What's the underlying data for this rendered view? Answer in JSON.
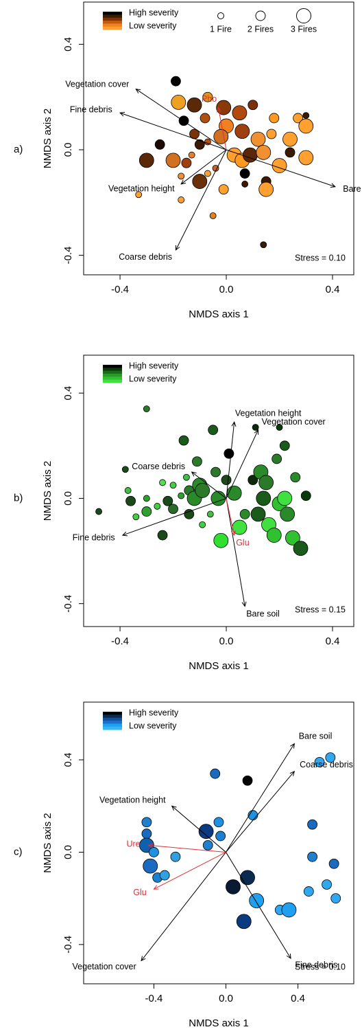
{
  "chart_data": [
    {
      "type": "scatter",
      "panel": "a)",
      "xlabel": "NMDS axis 1",
      "ylabel": "NMDS axis 2",
      "xlim": [
        -0.537,
        0.48
      ],
      "ylim": [
        -0.474,
        0.56
      ],
      "xticks": [
        -0.4,
        {
          "value": 0,
          "label": "0.0"
        },
        0.4
      ],
      "yticks": [
        -0.4,
        {
          "value": 0,
          "label": "0.0"
        },
        0.4
      ],
      "legend": {
        "high": "High severity",
        "low": "Low severity",
        "colors": [
          "#000000",
          "#3a1a00",
          "#7a3208",
          "#c05a10",
          "#f08020",
          "#ffa030"
        ]
      },
      "size_legend": [
        {
          "value": 1,
          "label": "1 Fire"
        },
        {
          "value": 2,
          "label": "2 Fires"
        },
        {
          "value": 3,
          "label": "3 Fires"
        }
      ],
      "stress": "Stress = 0.10",
      "x": [
        -0.19,
        -0.18,
        -0.12,
        -0.07,
        -0.01,
        0.05,
        0.1,
        0.18,
        0.27,
        0.3,
        -0.16,
        -0.08,
        0.0,
        -0.02,
        0.06,
        0.12,
        0.17,
        0.24,
        -0.25,
        -0.12,
        -0.1,
        -0.07,
        -0.3,
        -0.2,
        -0.15,
        -0.13,
        0.03,
        0.06,
        0.09,
        0.14,
        0.24,
        0.2,
        0.3,
        -0.1,
        -0.04,
        -0.01,
        0.07,
        0.07,
        0.15,
        0.15,
        -0.17,
        -0.07,
        -0.33,
        -0.17,
        -0.05,
        0.14,
        0.3
      ],
      "y": [
        0.26,
        0.18,
        0.17,
        0.2,
        0.16,
        0.14,
        0.17,
        0.12,
        0.12,
        0.09,
        0.11,
        0.12,
        0.09,
        0.05,
        0.07,
        0.04,
        0.06,
        0.04,
        0.02,
        0.06,
        0.02,
        0.03,
        -0.04,
        -0.04,
        -0.05,
        -0.02,
        -0.02,
        -0.04,
        -0.02,
        -0.01,
        -0.01,
        -0.06,
        -0.03,
        -0.12,
        -0.07,
        -0.15,
        -0.09,
        -0.13,
        -0.12,
        -0.15,
        -0.1,
        -0.09,
        -0.17,
        -0.19,
        -0.25,
        -0.36,
        0.13
      ],
      "fires": [
        2,
        3,
        3,
        2,
        3,
        3,
        2,
        2,
        2,
        3,
        2,
        2,
        3,
        3,
        3,
        3,
        2,
        3,
        2,
        2,
        2,
        1,
        3,
        3,
        2,
        1,
        3,
        3,
        3,
        3,
        2,
        3,
        3,
        3,
        1,
        2,
        2,
        1,
        2,
        3,
        1,
        1,
        1,
        1,
        1,
        1,
        1
      ],
      "colors": [
        "#000000",
        "#f0a020",
        "#5a2a08",
        "#e89020",
        "#8a3a08",
        "#b04a10",
        "#7a3208",
        "#ff9a20",
        "#ffa030",
        "#ffa030",
        "#000000",
        "#b05010",
        "#f08020",
        "#d07020",
        "#a04010",
        "#f09030",
        "#ffa030",
        "#ffa030",
        "#1a0a00",
        "#7a3208",
        "#3a1a00",
        "#c05010",
        "#5a2808",
        "#d07020",
        "#a04010",
        "#e08030",
        "#ffa030",
        "#ff9a20",
        "#5a2808",
        "#f09030",
        "#3a1a00",
        "#ffa030",
        "#ffa030",
        "#6a3008",
        "#d06020",
        "#ffa030",
        "#000000",
        "#3a1a00",
        "#3a1a00",
        "#ffa030",
        "#f09030",
        "#ffa030",
        "#ffa030",
        "#ffa030",
        "#e08020",
        "#3a1a00",
        "#3a1a00"
      ],
      "vectors": [
        {
          "label": "Vegetation cover",
          "x": -0.34,
          "y": 0.23,
          "color": "#000000"
        },
        {
          "label": "Fine debris",
          "x": -0.4,
          "y": 0.14,
          "color": "#000000"
        },
        {
          "label": "Vegetation height",
          "x": -0.17,
          "y": -0.13,
          "color": "#000000"
        },
        {
          "label": "Coarse debris",
          "x": -0.19,
          "y": -0.38,
          "color": "#000000"
        },
        {
          "label": "Bare soil",
          "x": 0.41,
          "y": -0.14,
          "color": "#000000"
        },
        {
          "label": "Pho",
          "x": -0.03,
          "y": 0.16,
          "color": "#e0303a"
        }
      ]
    },
    {
      "type": "scatter",
      "panel": "b)",
      "xlabel": "NMDS axis 1",
      "ylabel": "NMDS axis 2",
      "xlim": [
        -0.537,
        0.48
      ],
      "ylim": [
        -0.487,
        0.544
      ],
      "xticks": [
        -0.4,
        {
          "value": 0,
          "label": "0.0"
        },
        0.4
      ],
      "yticks": [
        -0.4,
        {
          "value": 0,
          "label": "0.0"
        },
        0.4
      ],
      "legend": {
        "high": "High severity",
        "low": "Low severity",
        "colors": [
          "#000000",
          "#0a3a0a",
          "#1a6a1a",
          "#2a9a2a",
          "#30c030",
          "#40e040"
        ]
      },
      "stress": "Stress = 0.15",
      "x": [
        -0.48,
        -0.3,
        -0.38,
        -0.37,
        -0.36,
        -0.34,
        -0.3,
        -0.3,
        -0.26,
        -0.24,
        -0.24,
        -0.22,
        -0.2,
        -0.2,
        -0.17,
        -0.16,
        -0.15,
        -0.14,
        -0.14,
        -0.12,
        -0.11,
        -0.1,
        -0.09,
        -0.09,
        -0.06,
        -0.05,
        -0.04,
        -0.03,
        -0.02,
        0.0,
        0.01,
        0.03,
        0.05,
        0.07,
        0.1,
        0.11,
        0.12,
        0.13,
        0.14,
        0.15,
        0.16,
        0.18,
        0.19,
        0.2,
        0.22,
        0.22,
        0.23,
        0.25,
        0.26,
        0.28,
        0.3,
        0.2
      ],
      "y": [
        -0.05,
        0.34,
        0.11,
        0.03,
        -0.01,
        -0.07,
        0.0,
        -0.05,
        -0.03,
        0.06,
        -0.14,
        -0.01,
        0.05,
        -0.04,
        0.01,
        0.22,
        0.08,
        0.03,
        -0.06,
        0.0,
        0.14,
        0.05,
        0.03,
        -0.1,
        -0.06,
        0.26,
        0.1,
        0.0,
        -0.16,
        0.07,
        0.17,
        0.02,
        -0.11,
        -0.06,
        0.07,
        0.27,
        -0.06,
        0.1,
        0.0,
        0.06,
        -0.1,
        -0.14,
        0.15,
        -0.02,
        0.0,
        0.2,
        -0.06,
        -0.15,
        0.08,
        -0.19,
        0.01,
        0.27
      ],
      "fires": [
        1,
        1,
        1,
        1,
        2,
        1,
        1,
        2,
        1,
        1,
        2,
        2,
        1,
        2,
        1,
        2,
        1,
        2,
        2,
        3,
        2,
        3,
        3,
        1,
        1,
        2,
        2,
        3,
        3,
        2,
        2,
        3,
        3,
        2,
        2,
        1,
        3,
        3,
        3,
        3,
        3,
        3,
        2,
        3,
        3,
        2,
        3,
        3,
        2,
        3,
        2,
        1
      ],
      "colors": [
        "#1a4a1a",
        "#2a7a2a",
        "#1a4a1a",
        "#40c040",
        "#1a4a1a",
        "#40d040",
        "#30a030",
        "#30a030",
        "#40d040",
        "#50e050",
        "#1a4a1a",
        "#1a4a1a",
        "#40d040",
        "#2a6a2a",
        "#30a030",
        "#1a5a1a",
        "#40c040",
        "#2a7a2a",
        "#1a4a1a",
        "#2a8a2a",
        "#2a7a2a",
        "#2a8a2a",
        "#2a7a2a",
        "#40d040",
        "#40c040",
        "#1a5a1a",
        "#2a7a2a",
        "#2a8a2a",
        "#30e030",
        "#1a4a1a",
        "#000000",
        "#2a8a2a",
        "#40e040",
        "#2a8a2a",
        "#0a2a0a",
        "#0a2a0a",
        "#1a5a1a",
        "#2a8a2a",
        "#1a5a1a",
        "#2a7a2a",
        "#40e040",
        "#30c030",
        "#2a7a2a",
        "#30c030",
        "#40e040",
        "#1a5a1a",
        "#2a8a2a",
        "#30c030",
        "#2a8a2a",
        "#1a5a1a",
        "#0a3a0a",
        "#0a3a0a"
      ],
      "vectors": [
        {
          "label": "Vegetation height",
          "x": 0.03,
          "y": 0.29,
          "color": "#000000"
        },
        {
          "label": "Vegetation cover",
          "x": 0.12,
          "y": 0.26,
          "color": "#000000"
        },
        {
          "label": "Coarse debris",
          "x": -0.13,
          "y": 0.1,
          "color": "#000000"
        },
        {
          "label": "Fine debris",
          "x": -0.39,
          "y": -0.14,
          "color": "#000000"
        },
        {
          "label": "Bare soil",
          "x": 0.07,
          "y": -0.41,
          "color": "#000000"
        },
        {
          "label": "Glu",
          "x": 0.03,
          "y": -0.14,
          "color": "#e0303a"
        }
      ]
    },
    {
      "type": "scatter",
      "panel": "c)",
      "xlabel": "NMDS axis 1",
      "ylabel": "NMDS axis 2",
      "xlim": [
        -0.79,
        0.71
      ],
      "ylim": [
        -0.57,
        0.65
      ],
      "xticks": [
        -0.4,
        {
          "value": 0,
          "label": "0.0"
        },
        0.4
      ],
      "yticks": [
        -0.4,
        {
          "value": 0,
          "label": "0.0"
        },
        0.4
      ],
      "legend": {
        "high": "High severity",
        "low": "Low severity",
        "colors": [
          "#000000",
          "#0a2a50",
          "#1050a0",
          "#1a70c8",
          "#20a0f0",
          "#30b8f8"
        ]
      },
      "stress": "Stress = 0.10",
      "x": [
        -0.44,
        -0.44,
        -0.44,
        -0.42,
        -0.4,
        -0.38,
        -0.34,
        -0.28,
        -0.11,
        -0.1,
        -0.06,
        -0.04,
        -0.03,
        0.04,
        0.1,
        0.12,
        0.12,
        0.15,
        0.17,
        0.3,
        0.35,
        0.46,
        0.48,
        0.48,
        0.52,
        0.58,
        0.56,
        0.6,
        0.61
      ],
      "y": [
        0.13,
        0.08,
        0.03,
        -0.06,
        0.0,
        -0.11,
        -0.1,
        -0.02,
        0.09,
        0.03,
        0.34,
        0.13,
        0.07,
        -0.15,
        -0.3,
        -0.11,
        0.31,
        0.16,
        -0.21,
        -0.25,
        -0.25,
        -0.17,
        0.12,
        -0.02,
        0.39,
        0.41,
        -0.14,
        -0.05,
        -0.2
      ],
      "fires": [
        2,
        2,
        3,
        3,
        2,
        2,
        2,
        2,
        3,
        2,
        2,
        2,
        2,
        3,
        3,
        3,
        2,
        2,
        3,
        2,
        3,
        2,
        2,
        2,
        2,
        2,
        2,
        2,
        2
      ],
      "colors": [
        "#2080d0",
        "#1a6ac0",
        "#1060b0",
        "#1a6ac0",
        "#2090e0",
        "#1a80d0",
        "#30a0e0",
        "#30a0e0",
        "#0a3a80",
        "#2080d0",
        "#1a6ac0",
        "#2090e0",
        "#1a80d0",
        "#0a1a30",
        "#0a3a80",
        "#0a2a50",
        "#000000",
        "#2090e0",
        "#20a0f0",
        "#30a8f0",
        "#20a0f0",
        "#30a8f0",
        "#1a6ac0",
        "#2080d0",
        "#30a8f0",
        "#30a8f0",
        "#30a8f0",
        "#1a6ac0",
        "#30a8f0"
      ],
      "vectors": [
        {
          "label": "Bare soil",
          "x": 0.38,
          "y": 0.47,
          "color": "#000000"
        },
        {
          "label": "Coarse debris",
          "x": 0.38,
          "y": 0.35,
          "color": "#000000"
        },
        {
          "label": "Vegetation height",
          "x": -0.3,
          "y": 0.2,
          "color": "#000000"
        },
        {
          "label": "Vegetation cover",
          "x": -0.47,
          "y": -0.47,
          "color": "#000000"
        },
        {
          "label": "Fine debris",
          "x": 0.36,
          "y": -0.46,
          "color": "#000000"
        },
        {
          "label": "Ure",
          "x": -0.43,
          "y": 0.03,
          "color": "#e0303a"
        },
        {
          "label": "Glu",
          "x": -0.4,
          "y": -0.16,
          "color": "#e0303a"
        }
      ]
    }
  ]
}
